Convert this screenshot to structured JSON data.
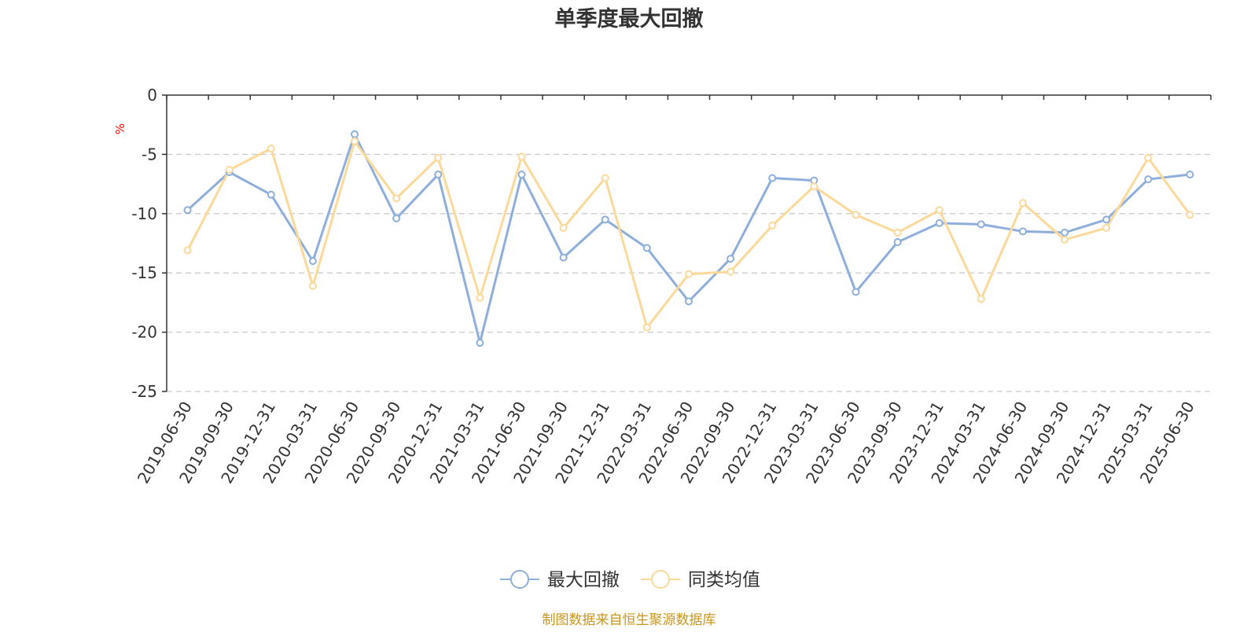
{
  "chart_data": {
    "type": "line",
    "title": "单季度最大回撤",
    "ylabel": "%",
    "ylim": [
      -25,
      0
    ],
    "yticks": [
      0,
      -5,
      -10,
      -15,
      -20,
      -25
    ],
    "grid": true,
    "legend_position": "bottom-center",
    "categories": [
      "2019-06-30",
      "2019-09-30",
      "2019-12-31",
      "2020-03-31",
      "2020-06-30",
      "2020-09-30",
      "2020-12-31",
      "2021-03-31",
      "2021-06-30",
      "2021-09-30",
      "2021-12-31",
      "2022-03-31",
      "2022-06-30",
      "2022-09-30",
      "2022-12-31",
      "2023-03-31",
      "2023-06-30",
      "2023-09-30",
      "2023-12-31",
      "2024-03-31",
      "2024-06-30",
      "2024-09-30",
      "2024-12-31",
      "2025-03-31",
      "2025-06-30"
    ],
    "series": [
      {
        "name": "最大回撤",
        "color": "#8eaedb",
        "values": [
          -9.7,
          -6.5,
          -8.4,
          -14.0,
          -3.3,
          -10.4,
          -6.7,
          -20.9,
          -6.7,
          -13.7,
          -10.5,
          -12.9,
          -17.4,
          -13.8,
          -7.0,
          -7.2,
          -16.6,
          -12.4,
          -10.8,
          -10.9,
          -11.5,
          -11.6,
          -10.5,
          -7.1,
          -6.7
        ]
      },
      {
        "name": "同类均值",
        "color": "#fbd99a",
        "values": [
          -13.1,
          -6.3,
          -4.5,
          -16.1,
          -3.9,
          -8.7,
          -5.3,
          -17.1,
          -5.2,
          -11.2,
          -7.0,
          -19.6,
          -15.1,
          -14.9,
          -11.0,
          -7.7,
          -10.1,
          -11.6,
          -9.7,
          -17.2,
          -9.1,
          -12.2,
          -11.2,
          -5.3,
          -10.1
        ]
      }
    ]
  },
  "footer": {
    "source_text": "制图数据来自恒生聚源数据库"
  },
  "colors": {
    "axis": "#333333",
    "grid": "#cccccc",
    "ylabel": "#ff0000",
    "footer": "#c8961e",
    "title": "#333333"
  }
}
